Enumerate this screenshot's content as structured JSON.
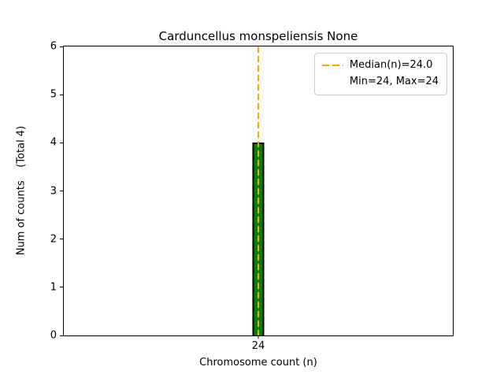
{
  "chart_data": {
    "type": "bar",
    "title": "Carduncellus monspeliensis None",
    "xlabel": "Chromosome count (n)",
    "ylabel": "Num of counts    (Total 4)",
    "categories": [
      "24"
    ],
    "values": [
      4
    ],
    "total_counts": 4,
    "ylim": [
      0,
      6
    ],
    "yticks": [
      0,
      1,
      2,
      3,
      4,
      5,
      6
    ],
    "median": "24.0",
    "min": "24",
    "max": "24",
    "median_line_x": 24,
    "grid": false,
    "legend": {
      "position": "upper-right",
      "entries": [
        "Median(n)=24.0",
        "Min=24, Max=24"
      ]
    },
    "colors": {
      "bar_fill": "#008000",
      "bar_edge": "#000000",
      "median_line": "#ffa500",
      "legend_border": "#cccccc",
      "axis": "#000000",
      "background": "#ffffff"
    }
  }
}
